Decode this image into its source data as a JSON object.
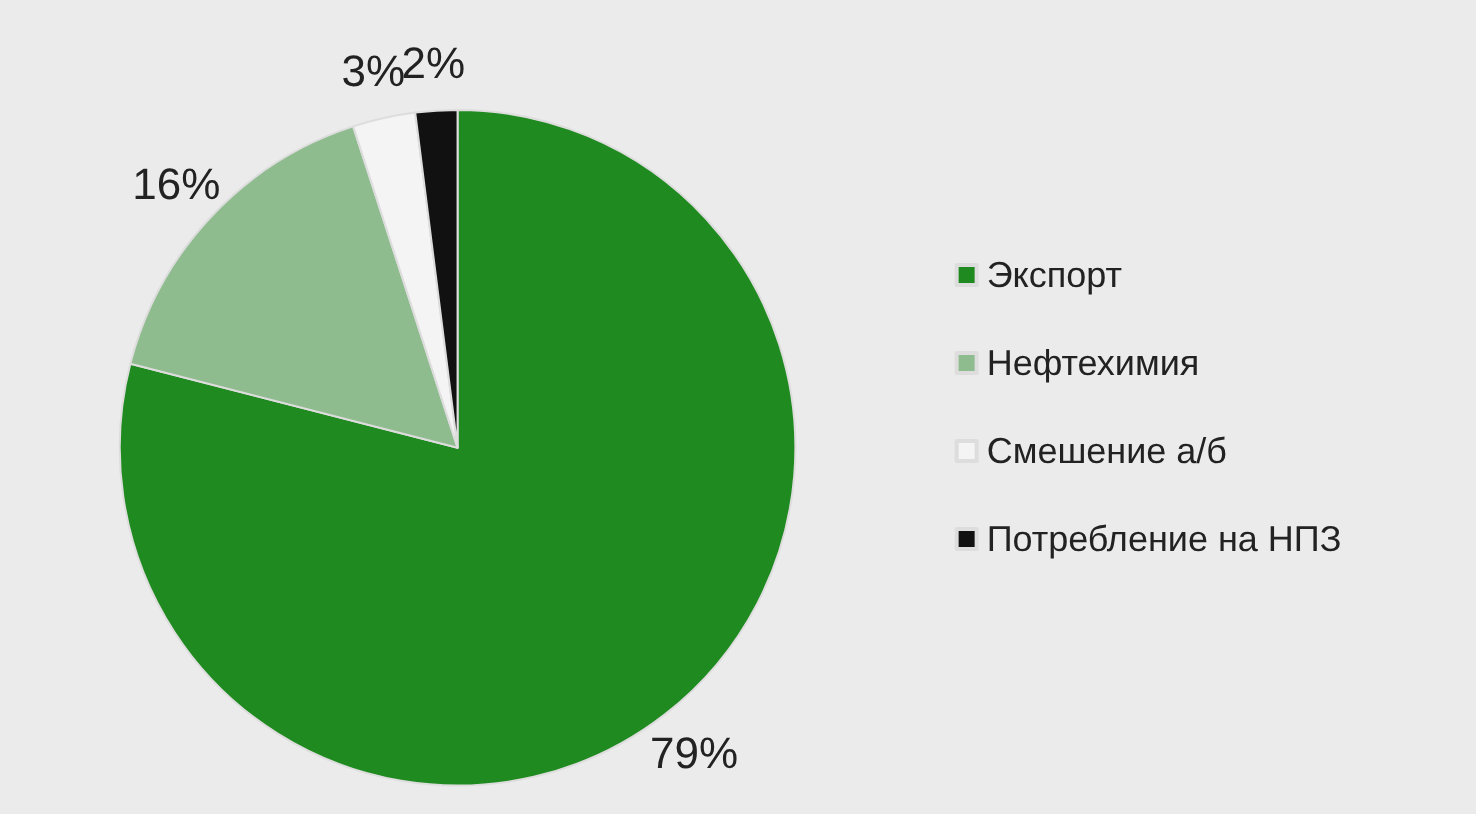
{
  "chart_data": {
    "type": "pie",
    "categories": [
      "Экспорт",
      "Нефтехимия",
      "Смешение а/б",
      "Потребление на НПЗ"
    ],
    "values": [
      79,
      16,
      3,
      2
    ],
    "value_labels": [
      "79%",
      "16%",
      "3%",
      "2%"
    ],
    "colors": [
      "#1f8a1f",
      "#8fbc8f",
      "#f4f4f4",
      "#111111"
    ],
    "legend": "right"
  }
}
